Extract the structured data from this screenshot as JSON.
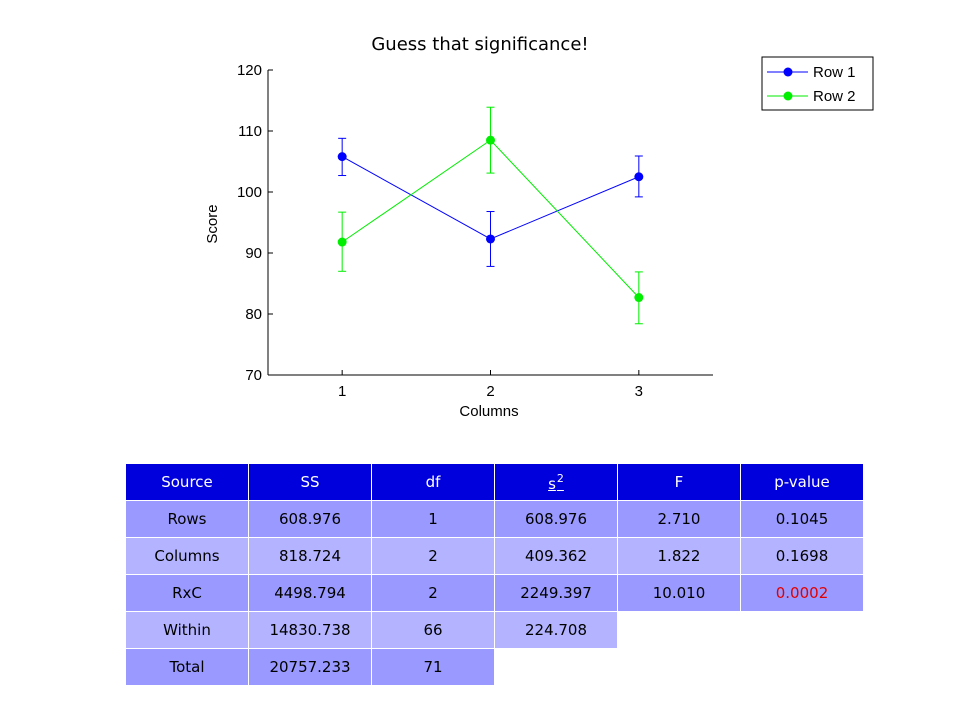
{
  "chart_data": {
    "type": "line",
    "title": "Guess that significance!",
    "xlabel": "Columns",
    "ylabel": "Score",
    "x": [
      1,
      2,
      3
    ],
    "xticks": [
      "1",
      "2",
      "3"
    ],
    "xlim": [
      0.5,
      3.5
    ],
    "ylim": [
      70,
      120
    ],
    "yticks": [
      "70",
      "80",
      "90",
      "100",
      "110",
      "120"
    ],
    "grid": false,
    "legend_position": "top-right",
    "series": [
      {
        "name": "Row 1",
        "color": "#0000ff",
        "values": [
          105.8,
          92.3,
          102.5
        ],
        "err_low": [
          102.7,
          87.8,
          99.2
        ],
        "err_high": [
          108.8,
          96.8,
          105.9
        ]
      },
      {
        "name": "Row 2",
        "color": "#00ee00",
        "values": [
          91.8,
          108.5,
          82.7
        ],
        "err_low": [
          87.0,
          103.1,
          78.4
        ],
        "err_high": [
          96.7,
          113.9,
          86.9
        ]
      }
    ]
  },
  "table": {
    "headers": [
      "Source",
      "SS",
      "df",
      "s",
      "F",
      "p-value"
    ],
    "header_sup": "2",
    "rows": [
      [
        "Rows",
        "608.976",
        "1",
        "608.976",
        "2.710",
        "0.1045"
      ],
      [
        "Columns",
        "818.724",
        "2",
        "409.362",
        "1.822",
        "0.1698"
      ],
      [
        "RxC",
        "4498.794",
        "2",
        "2249.397",
        "10.010",
        "0.0002"
      ],
      [
        "Within",
        "14830.738",
        "66",
        "224.708",
        "",
        ""
      ],
      [
        "Total",
        "20757.233",
        "71",
        "",
        "",
        ""
      ]
    ]
  }
}
